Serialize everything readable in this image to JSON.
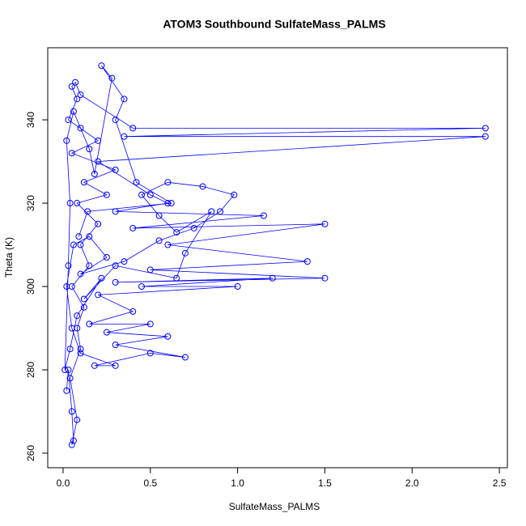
{
  "chart_data": {
    "type": "line",
    "markers": true,
    "title": "ATOM3 Southbound SulfateMass_PALMS",
    "x_label": "SulfateMass_PALMS",
    "y_label": "Theta (K)",
    "color": "#0000ff",
    "xlim": [
      -0.088,
      2.546
    ],
    "ylim": [
      256.5,
      357.3
    ],
    "xticks": [
      {
        "value": 0,
        "label": "0.0"
      },
      0.5,
      {
        "value": 1,
        "label": "1.0"
      },
      1.5,
      {
        "value": 2,
        "label": "2.0"
      },
      2.5
    ],
    "yticks": [
      260,
      280,
      300,
      320,
      340
    ],
    "x": [
      0.02,
      0.03,
      0.05,
      0.06,
      0.05,
      0.08,
      0.04,
      0.1,
      0.08,
      0.12,
      0.05,
      0.15,
      0.1,
      0.2,
      0.08,
      0.25,
      0.12,
      0.3,
      0.05,
      0.2,
      0.03,
      0.08,
      0.05,
      0.07,
      0.1,
      0.4,
      2.42,
      0.35,
      2.42,
      0.2,
      0.5,
      0.6,
      0.3,
      1.15,
      0.4,
      1.5,
      0.6,
      1.4,
      0.5,
      1.5,
      0.3,
      1.2,
      0.45,
      1.0,
      0.2,
      0.4,
      0.15,
      0.5,
      0.25,
      0.6,
      0.3,
      0.7,
      0.5,
      0.18,
      0.3,
      0.1,
      0.05,
      0.02,
      0.06,
      0.15,
      0.25,
      0.1,
      0.35,
      0.55,
      0.75,
      0.9,
      0.98,
      0.8,
      0.6,
      0.45,
      0.55,
      0.65,
      0.85,
      0.7,
      0.65,
      0.3,
      0.12,
      0.22,
      0.08,
      0.04,
      0.01,
      0.03,
      0.04,
      0.02,
      0.06,
      0.1,
      0.15,
      0.18,
      0.28,
      0.22,
      0.35,
      0.3,
      0.42,
      0.62,
      0.14,
      0.09
    ],
    "y": [
      275,
      280,
      270,
      263,
      262,
      268,
      278,
      285,
      290,
      295,
      300,
      305,
      310,
      315,
      320,
      322,
      325,
      328,
      332,
      335,
      340,
      345,
      348,
      349,
      346,
      338,
      338,
      336,
      336,
      330,
      322,
      320,
      318,
      317,
      314,
      315,
      310,
      306,
      304,
      302,
      301,
      302,
      300,
      300,
      298,
      294,
      291,
      291,
      289,
      288,
      286,
      283,
      284,
      281,
      281,
      284,
      290,
      300,
      310,
      312,
      307,
      303,
      306,
      311,
      314,
      318,
      322,
      324,
      325,
      322,
      317,
      313,
      318,
      308,
      302,
      305,
      297,
      302,
      293,
      285,
      280,
      305,
      320,
      335,
      342,
      338,
      333,
      327,
      350,
      353,
      345,
      340,
      325,
      320,
      318,
      312
    ]
  }
}
